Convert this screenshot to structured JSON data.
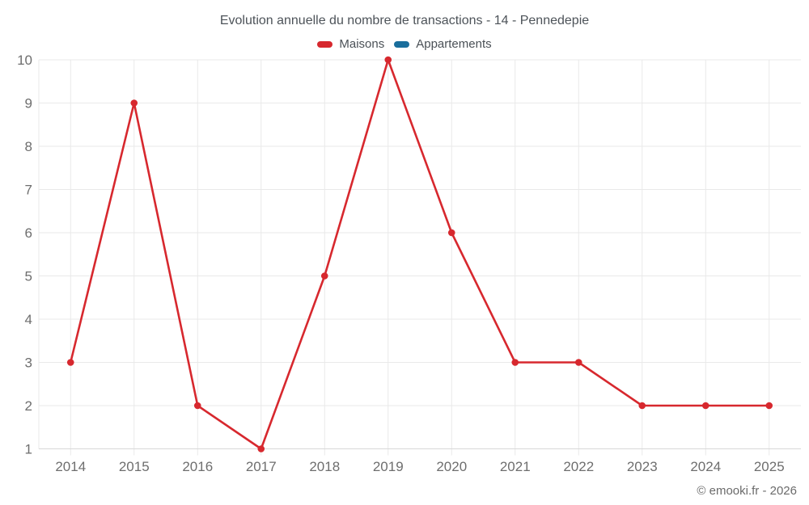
{
  "title": "Evolution annuelle du nombre de transactions - 14 - Pennedepie",
  "copyright": "© emooki.fr - 2026",
  "colors": {
    "maisons": "#d7282e",
    "appartements": "#1a6e9c",
    "grid": "#e9e9e9",
    "axis_line": "#d8d8d8",
    "title_text": "#4d5359",
    "axis_label_text": "#6e6e6e"
  },
  "chart_data": {
    "type": "line",
    "title": "Evolution annuelle du nombre de transactions - 14 - Pennedepie",
    "categories": [
      "2014",
      "2015",
      "2016",
      "2017",
      "2018",
      "2019",
      "2020",
      "2021",
      "2022",
      "2023",
      "2024",
      "2025"
    ],
    "series": [
      {
        "name": "Maisons",
        "color": "#d7282e",
        "values": [
          3,
          9,
          2,
          1,
          5,
          10,
          6,
          3,
          3,
          2,
          2,
          2
        ]
      },
      {
        "name": "Appartements",
        "color": "#1a6e9c",
        "values": []
      }
    ],
    "xlabel": "",
    "ylabel": "",
    "ylim": [
      1,
      10
    ],
    "yticks": [
      1,
      2,
      3,
      4,
      5,
      6,
      7,
      8,
      9,
      10
    ],
    "grid": true,
    "legend_position": "top"
  }
}
